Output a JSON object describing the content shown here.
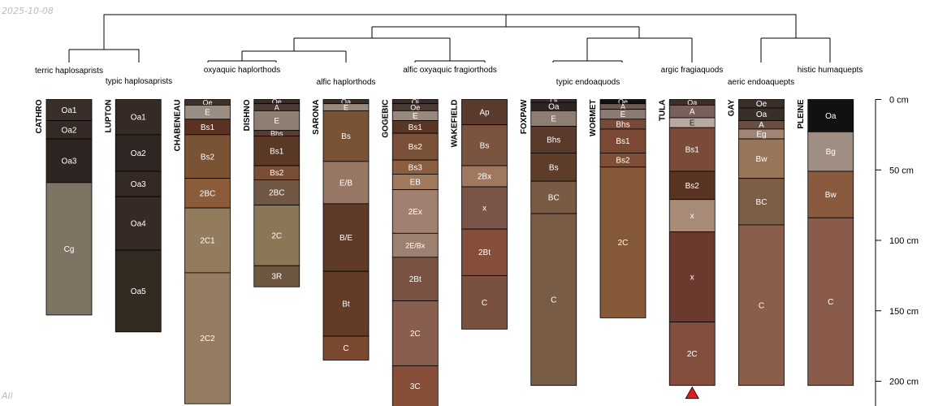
{
  "meta": {
    "date_stamp": "2025-10-08",
    "corner_label": "All"
  },
  "chart_data": {
    "type": "soil-profile",
    "title": "",
    "depth_unit": "cm",
    "depth_axis": {
      "ticks": [
        0,
        50,
        100,
        150,
        200
      ],
      "labels": [
        "0 cm",
        "50 cm",
        "100 cm",
        "150 cm",
        "200 cm"
      ]
    },
    "taxa_labels": [
      "terric haplosaprists",
      "typic haplosaprists",
      "oxyaquic haplorthods",
      "alfic haplorthods",
      "alfic oxyaquic fragiorthods",
      "typic endoaquods",
      "argic fragiaquods",
      "aeric endoaquepts",
      "histic humaquepts"
    ],
    "profiles": [
      {
        "name": "CATHRO",
        "horizons": [
          {
            "name": "Oa1",
            "top": 0,
            "bottom": 15,
            "color": "#3a2e2a"
          },
          {
            "name": "Oa2",
            "top": 15,
            "bottom": 28,
            "color": "#342925"
          },
          {
            "name": "Oa3",
            "top": 28,
            "bottom": 59,
            "color": "#2e2522"
          },
          {
            "name": "Cg",
            "top": 59,
            "bottom": 153,
            "color": "#7d7463"
          }
        ]
      },
      {
        "name": "LUPTON",
        "horizons": [
          {
            "name": "Oa1",
            "top": 0,
            "bottom": 25,
            "color": "#352a26"
          },
          {
            "name": "Oa2",
            "top": 25,
            "bottom": 51,
            "color": "#2f2623"
          },
          {
            "name": "Oa3",
            "top": 51,
            "bottom": 69,
            "color": "#342925"
          },
          {
            "name": "Oa4",
            "top": 69,
            "bottom": 107,
            "color": "#352a26"
          },
          {
            "name": "Oa5",
            "top": 107,
            "bottom": 165,
            "color": "#332a22"
          }
        ]
      },
      {
        "name": "CHABENEAU",
        "horizons": [
          {
            "name": "Oe",
            "top": 0,
            "bottom": 4,
            "color": "#3e302a"
          },
          {
            "name": "E",
            "top": 4,
            "bottom": 14,
            "color": "#9a8d84"
          },
          {
            "name": "Bs1",
            "top": 14,
            "bottom": 25,
            "color": "#5a3222"
          },
          {
            "name": "Bs2",
            "top": 25,
            "bottom": 56,
            "color": "#7a5234"
          },
          {
            "name": "2BC",
            "top": 56,
            "bottom": 77,
            "color": "#8a5c3a"
          },
          {
            "name": "2C1",
            "top": 77,
            "bottom": 123,
            "color": "#937b5e"
          },
          {
            "name": "2C2",
            "top": 123,
            "bottom": 216,
            "color": "#957c60"
          }
        ]
      },
      {
        "name": "DISHNO",
        "horizons": [
          {
            "name": "Oe",
            "top": 0,
            "bottom": 3,
            "color": "#3a2c28"
          },
          {
            "name": "A",
            "top": 3,
            "bottom": 8,
            "color": "#4a3a33"
          },
          {
            "name": "E",
            "top": 8,
            "bottom": 22,
            "color": "#8f7e72"
          },
          {
            "name": "Bhs",
            "top": 22,
            "bottom": 26,
            "color": "#5a3d30"
          },
          {
            "name": "Bs1",
            "top": 26,
            "bottom": 47,
            "color": "#5a3828"
          },
          {
            "name": "Bs2",
            "top": 47,
            "bottom": 57,
            "color": "#7a4e34"
          },
          {
            "name": "2BC",
            "top": 57,
            "bottom": 75,
            "color": "#715844"
          },
          {
            "name": "2C",
            "top": 75,
            "bottom": 118,
            "color": "#8b7656"
          },
          {
            "name": "3R",
            "top": 118,
            "bottom": 133,
            "color": "#6d5740"
          }
        ]
      },
      {
        "name": "SARONA",
        "horizons": [
          {
            "name": "Oa",
            "top": 0,
            "bottom": 3,
            "color": "#3a2c28"
          },
          {
            "name": "E",
            "top": 3,
            "bottom": 8,
            "color": "#9a8a7e"
          },
          {
            "name": "Bs",
            "top": 8,
            "bottom": 44,
            "color": "#7a5236"
          },
          {
            "name": "E/B",
            "top": 44,
            "bottom": 74,
            "color": "#987865"
          },
          {
            "name": "B/E",
            "top": 74,
            "bottom": 122,
            "color": "#5e3a28"
          },
          {
            "name": "Bt",
            "top": 122,
            "bottom": 168,
            "color": "#623c26"
          },
          {
            "name": "C",
            "top": 168,
            "bottom": 185,
            "color": "#7a4a30"
          }
        ]
      },
      {
        "name": "GOGEBIC",
        "horizons": [
          {
            "name": "Oi",
            "top": 0,
            "bottom": 3,
            "color": "#3a2c28"
          },
          {
            "name": "Oe",
            "top": 3,
            "bottom": 8,
            "color": "#4a3a34"
          },
          {
            "name": "E",
            "top": 8,
            "bottom": 15,
            "color": "#9a887c"
          },
          {
            "name": "Bs1",
            "top": 15,
            "bottom": 24,
            "color": "#5a3626"
          },
          {
            "name": "Bs2",
            "top": 24,
            "bottom": 43,
            "color": "#7a5038"
          },
          {
            "name": "Bs3",
            "top": 43,
            "bottom": 53,
            "color": "#8a5e3e"
          },
          {
            "name": "EB",
            "top": 53,
            "bottom": 64,
            "color": "#a07a5c"
          },
          {
            "name": "2Ex",
            "top": 64,
            "bottom": 95,
            "color": "#a08070"
          },
          {
            "name": "2E/Bx",
            "top": 95,
            "bottom": 112,
            "color": "#9e8070"
          },
          {
            "name": "2Bt",
            "top": 112,
            "bottom": 143,
            "color": "#7a5244"
          },
          {
            "name": "2C",
            "top": 143,
            "bottom": 189,
            "color": "#8a5e4e"
          },
          {
            "name": "3C",
            "top": 189,
            "bottom": 218,
            "color": "#874e38"
          }
        ]
      },
      {
        "name": "WAKEFIELD",
        "horizons": [
          {
            "name": "Ap",
            "top": 0,
            "bottom": 18,
            "color": "#5a3a2c"
          },
          {
            "name": "Bs",
            "top": 18,
            "bottom": 47,
            "color": "#7a5440"
          },
          {
            "name": "2Bx",
            "top": 47,
            "bottom": 62,
            "color": "#a07860"
          },
          {
            "name": "x",
            "top": 62,
            "bottom": 92,
            "color": "#7a5446"
          },
          {
            "name": "2Bt",
            "top": 92,
            "bottom": 125,
            "color": "#844e3a"
          },
          {
            "name": "C",
            "top": 125,
            "bottom": 163,
            "color": "#7a5040"
          }
        ]
      },
      {
        "name": "FOXPAW",
        "horizons": [
          {
            "name": "Oi",
            "top": 0,
            "bottom": 2,
            "color": "#3a2e2a"
          },
          {
            "name": "Oa",
            "top": 2,
            "bottom": 8,
            "color": "#2e2522"
          },
          {
            "name": "E",
            "top": 8,
            "bottom": 19,
            "color": "#8d7d72"
          },
          {
            "name": "Bhs",
            "top": 19,
            "bottom": 38,
            "color": "#5a3a2a"
          },
          {
            "name": "Bs",
            "top": 38,
            "bottom": 58,
            "color": "#5e3e2a"
          },
          {
            "name": "BC",
            "top": 58,
            "bottom": 81,
            "color": "#7a5a44"
          },
          {
            "name": "C",
            "top": 81,
            "bottom": 203,
            "color": "#785c46"
          }
        ]
      },
      {
        "name": "WORMET",
        "horizons": [
          {
            "name": "Oe",
            "top": 0,
            "bottom": 3,
            "color": "#121010"
          },
          {
            "name": "A",
            "top": 3,
            "bottom": 7,
            "color": "#6e5a50"
          },
          {
            "name": "E",
            "top": 7,
            "bottom": 14,
            "color": "#8e7a70"
          },
          {
            "name": "Bhs",
            "top": 14,
            "bottom": 21,
            "color": "#7a4a38"
          },
          {
            "name": "Bs1",
            "top": 21,
            "bottom": 38,
            "color": "#7c4a34"
          },
          {
            "name": "Bs2",
            "top": 38,
            "bottom": 48,
            "color": "#7e4e36"
          },
          {
            "name": "2C",
            "top": 48,
            "bottom": 155,
            "color": "#855838"
          }
        ]
      },
      {
        "name": "TULA",
        "horizons": [
          {
            "name": "Oa",
            "top": 0,
            "bottom": 4,
            "color": "#3e2e2a"
          },
          {
            "name": "A",
            "top": 4,
            "bottom": 13,
            "color": "#7a6058"
          },
          {
            "name": "E",
            "top": 13,
            "bottom": 20,
            "color": "#b8aaa2"
          },
          {
            "name": "Bs1",
            "top": 20,
            "bottom": 51,
            "color": "#7a4c38"
          },
          {
            "name": "Bs2",
            "top": 51,
            "bottom": 71,
            "color": "#5a3422"
          },
          {
            "name": "x",
            "top": 71,
            "bottom": 94,
            "color": "#a88a78"
          },
          {
            "name": "x",
            "top": 94,
            "bottom": 158,
            "color": "#6a3a2e"
          },
          {
            "name": "2C",
            "top": 158,
            "bottom": 203,
            "color": "#844e3e"
          }
        ],
        "marker": {
          "shape": "triangle",
          "color": "#e21b1b"
        }
      },
      {
        "name": "GAY",
        "horizons": [
          {
            "name": "Oe",
            "top": 0,
            "bottom": 6,
            "color": "#3a2e2a"
          },
          {
            "name": "Oa",
            "top": 6,
            "bottom": 15,
            "color": "#3a2e28"
          },
          {
            "name": "A",
            "top": 15,
            "bottom": 21,
            "color": "#6a4e3e"
          },
          {
            "name": "Eg",
            "top": 21,
            "bottom": 28,
            "color": "#a08474"
          },
          {
            "name": "Bw",
            "top": 28,
            "bottom": 56,
            "color": "#98765a"
          },
          {
            "name": "BC",
            "top": 56,
            "bottom": 89,
            "color": "#7a5e46"
          },
          {
            "name": "C",
            "top": 89,
            "bottom": 203,
            "color": "#8a5e4a"
          }
        ]
      },
      {
        "name": "PLEINE",
        "horizons": [
          {
            "name": "Oa",
            "top": 0,
            "bottom": 23,
            "color": "#111111"
          },
          {
            "name": "Bg",
            "top": 23,
            "bottom": 51,
            "color": "#a08e82"
          },
          {
            "name": "Bw",
            "top": 51,
            "bottom": 84,
            "color": "#8a5a3e"
          },
          {
            "name": "C",
            "top": 84,
            "bottom": 203,
            "color": "#8a5a4a"
          }
        ]
      }
    ]
  }
}
